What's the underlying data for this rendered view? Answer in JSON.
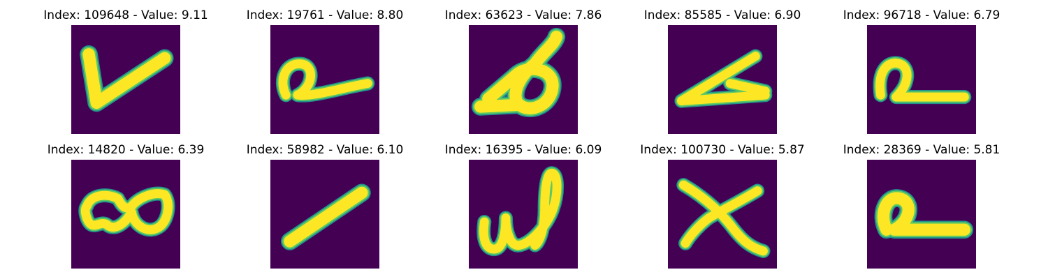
{
  "colors": {
    "background": "#440154",
    "stroke_edge": "#21918c",
    "stroke_mid": "#5ec962",
    "stroke_core": "#fde725",
    "title_text": "#000000"
  },
  "panels": [
    {
      "index": "109648",
      "value": "9.11",
      "title": "Index: 109648 - Value: 9.11",
      "glyph": "checkmark-stroke"
    },
    {
      "index": "19761",
      "value": "8.80",
      "title": "Index: 19761 - Value: 8.80",
      "glyph": "loop-with-tail"
    },
    {
      "index": "63623",
      "value": "7.86",
      "title": "Index: 63623 - Value: 7.86",
      "glyph": "triangle-loop"
    },
    {
      "index": "85585",
      "value": "6.90",
      "title": "Index: 85585 - Value: 6.90",
      "glyph": "clip-shape"
    },
    {
      "index": "96718",
      "value": "6.79",
      "title": "Index: 96718 - Value: 6.79",
      "glyph": "arch-with-tail"
    },
    {
      "index": "14820",
      "value": "6.39",
      "title": "Index: 14820 - Value: 6.39",
      "glyph": "figure-eight"
    },
    {
      "index": "58982",
      "value": "6.10",
      "title": "Index: 58982 - Value: 6.10",
      "glyph": "diagonal-bar"
    },
    {
      "index": "16395",
      "value": "6.09",
      "title": "Index: 16395 - Value: 6.09",
      "glyph": "w-shape"
    },
    {
      "index": "100730",
      "value": "5.87",
      "title": "Index: 100730 - Value: 5.87",
      "glyph": "x-cross"
    },
    {
      "index": "28369",
      "value": "5.81",
      "title": "Index: 28369 - Value: 5.81",
      "glyph": "loop-with-tail"
    }
  ]
}
